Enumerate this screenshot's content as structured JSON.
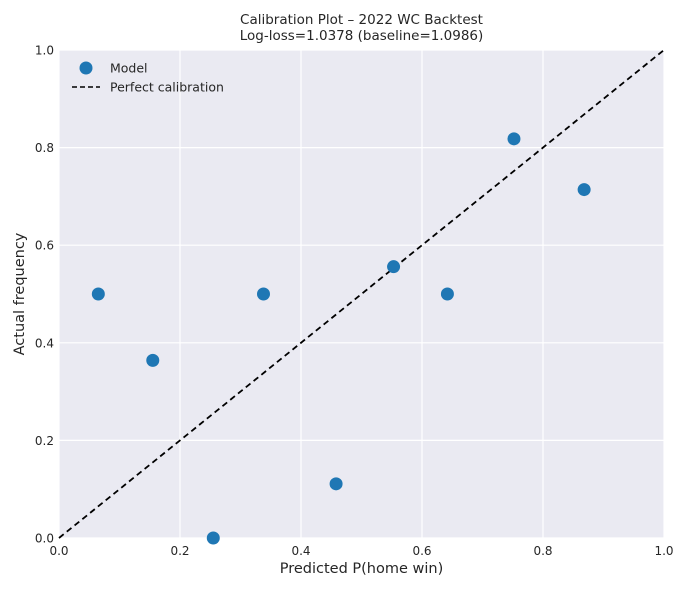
{
  "chart_data": {
    "type": "scatter",
    "title": "Calibration Plot – 2022 WC Backtest",
    "subtitle": "Log-loss=1.0378 (baseline=1.0986)",
    "xlabel": "Predicted P(home win)",
    "ylabel": "Actual frequency",
    "xlim": [
      0,
      1
    ],
    "ylim": [
      0,
      1
    ],
    "xticks": [
      "0.0",
      "0.2",
      "0.4",
      "0.6",
      "0.8",
      "1.0"
    ],
    "yticks": [
      "0.0",
      "0.2",
      "0.4",
      "0.6",
      "0.8",
      "1.0"
    ],
    "grid": true,
    "legend_position": "top-left",
    "series": [
      {
        "name": "Model",
        "kind": "scatter",
        "color": "#1f77b4",
        "x": [
          0.065,
          0.155,
          0.255,
          0.338,
          0.458,
          0.553,
          0.642,
          0.752,
          0.868
        ],
        "y": [
          0.5,
          0.364,
          0.0,
          0.5,
          0.111,
          0.556,
          0.5,
          0.818,
          0.714
        ]
      },
      {
        "name": "Perfect calibration",
        "kind": "line",
        "style": "dashed",
        "color": "#000000",
        "x": [
          0,
          1
        ],
        "y": [
          0,
          1
        ]
      }
    ]
  }
}
